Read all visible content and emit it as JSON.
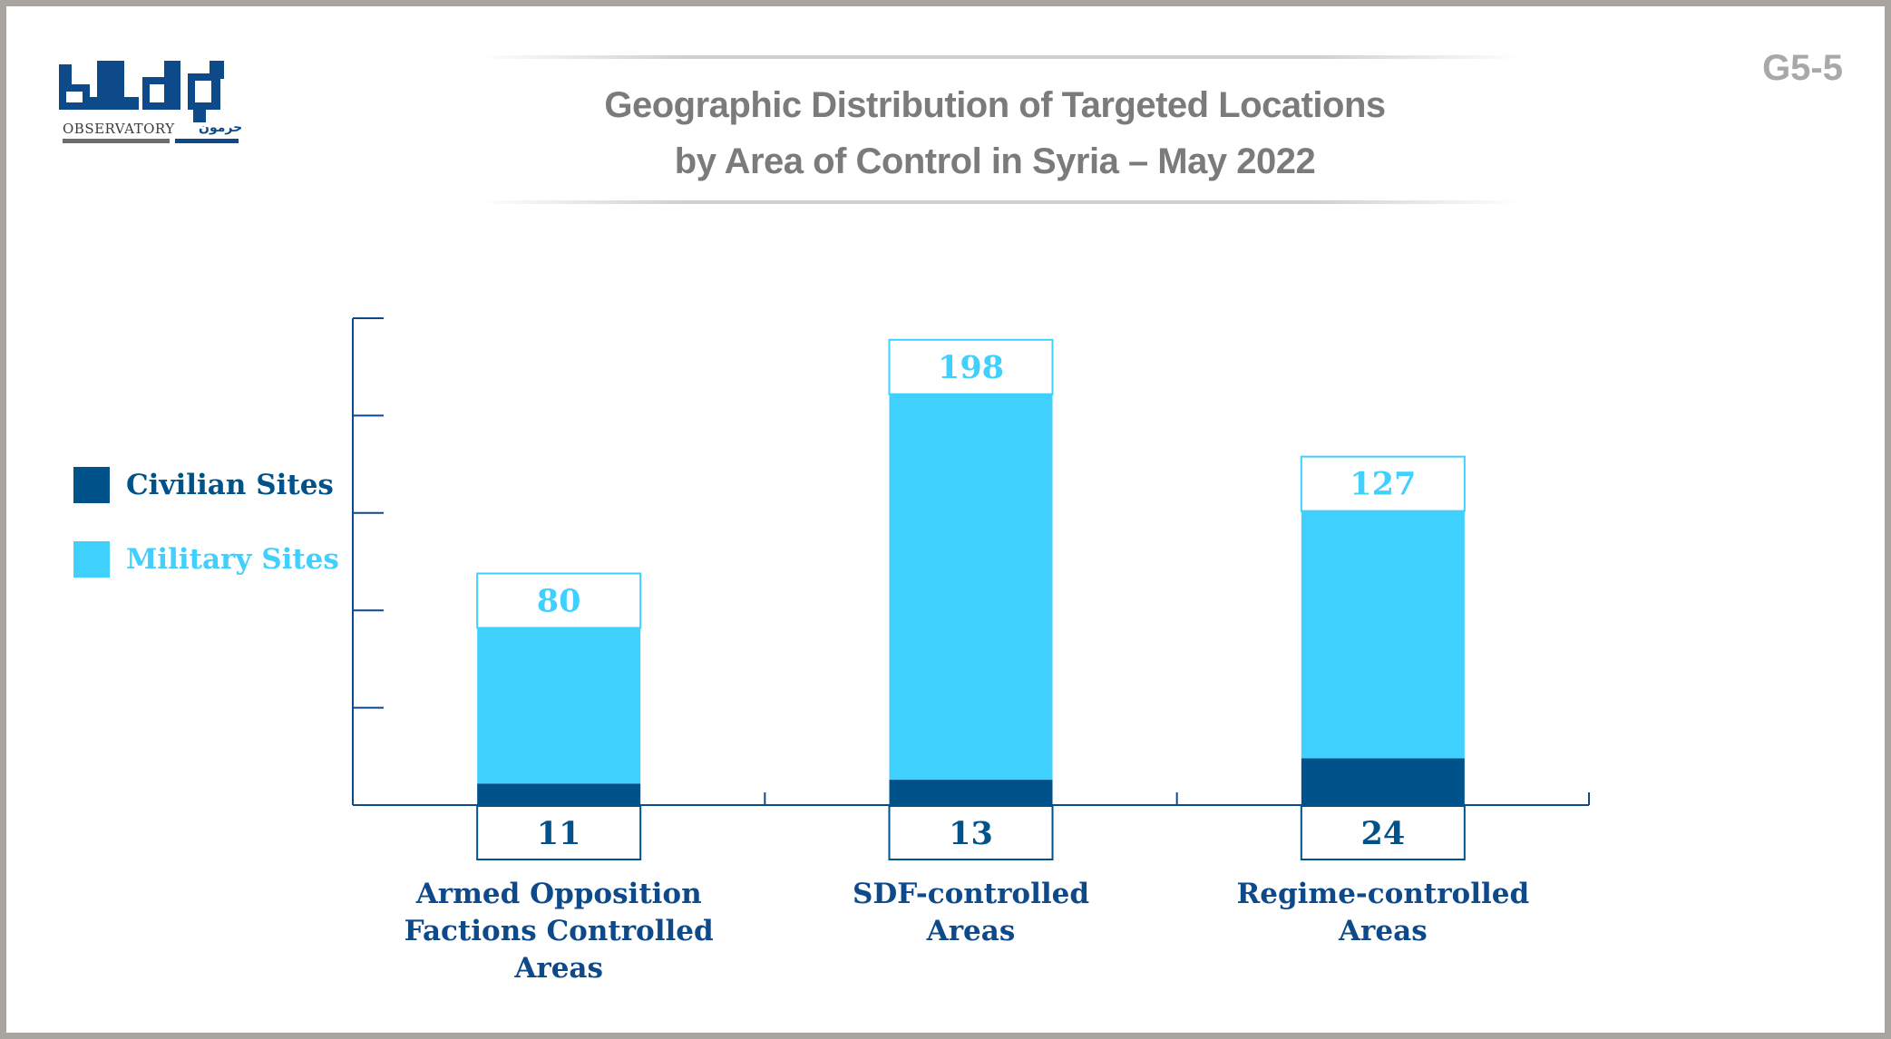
{
  "figure_code": "G5-5",
  "logo": {
    "word_mark": "OBSERVATORY",
    "arabic_mark": "حرمون",
    "brand_color": "#0e4a8a"
  },
  "colors": {
    "civilian": "#00528a",
    "military": "#40d0fd",
    "axis": "#0e4a8a",
    "title": "#7c7b7b",
    "frame": "#a8a5a1"
  },
  "chart_data": {
    "type": "bar",
    "stacked": true,
    "title_lines": [
      "Geographic Distribution of Targeted Locations",
      "by Area of Control in Syria – May 2022"
    ],
    "categories": [
      [
        "Armed Opposition",
        "Factions Controlled",
        "Areas"
      ],
      [
        "SDF-controlled",
        "Areas"
      ],
      [
        "Regime-controlled",
        "Areas"
      ]
    ],
    "series": [
      {
        "name": "Civilian Sites",
        "values": [
          11,
          13,
          24
        ]
      },
      {
        "name": "Military Sites",
        "values": [
          80,
          198,
          127
        ]
      }
    ],
    "ylim": [
      0,
      250
    ],
    "grid": false,
    "legend_position": "left"
  }
}
